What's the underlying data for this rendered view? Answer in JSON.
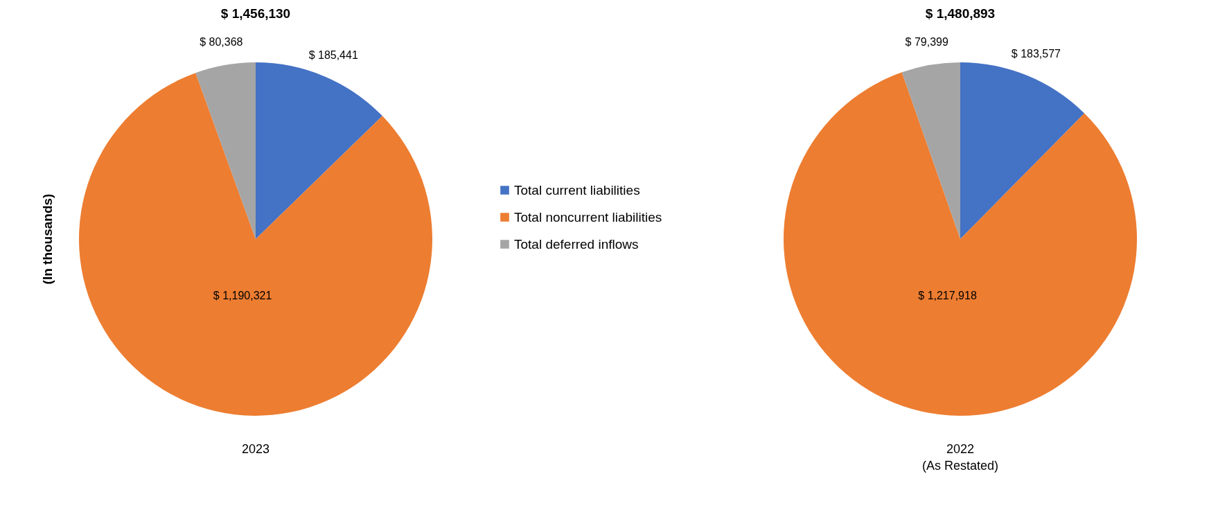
{
  "chart_data": [
    {
      "type": "pie",
      "title": "$ 1,456,130",
      "ylabel": "(In thousands)",
      "xlabel": "2023",
      "categories": [
        "Total current liabilities",
        "Total noncurrent liabilities",
        "Total deferred inflows"
      ],
      "values": [
        185441,
        1190321,
        80368
      ],
      "colors": [
        "#4472c4",
        "#ed7d31",
        "#a5a5a5"
      ],
      "value_labels": [
        "$ 185,441",
        "$ 1,190,321",
        "$ 80,368"
      ],
      "legend": "right"
    },
    {
      "type": "pie",
      "title": "$ 1,480,893",
      "xlabel": "2022\n(As Restated)",
      "categories": [
        null,
        null,
        null
      ],
      "values": [
        183577,
        1217918,
        79399
      ],
      "colors": [
        "#4472c4",
        "#ed7d31",
        "#a5a5a5"
      ],
      "value_labels": [
        "$ 183,577",
        "$ 1,217,918",
        "$ 79,399"
      ],
      "legend": false
    }
  ]
}
